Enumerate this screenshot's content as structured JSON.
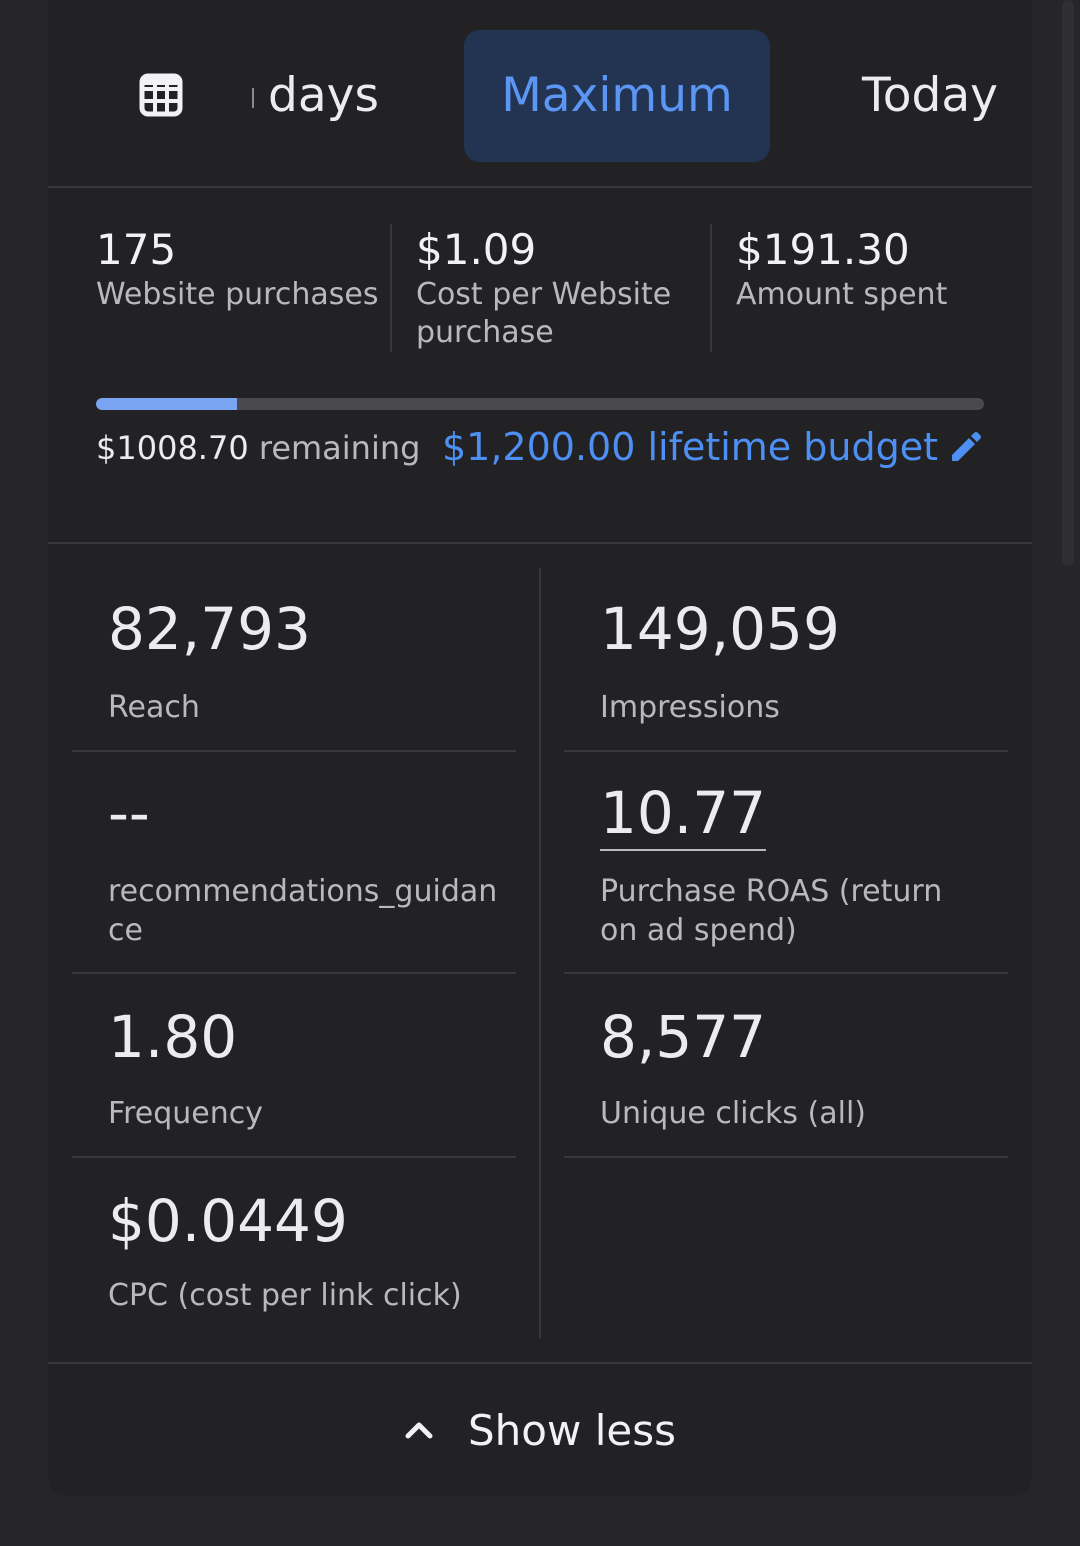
{
  "tabs": {
    "calendar_icon": "calendar-grid-icon",
    "days_label": "days",
    "maximum_label": "Maximum",
    "today_label": "Today"
  },
  "summary": {
    "purchases_value": "175",
    "purchases_label": "Website purchases",
    "cost_value": "$1.09",
    "cost_label": "Cost per Website purchase",
    "spent_value": "$191.30",
    "spent_label": "Amount spent",
    "budget_used_fraction": 0.159,
    "remaining_amount": "$1008.70",
    "remaining_label": "remaining",
    "budget_label": "$1,200.00 lifetime budget",
    "edit_icon": "pencil-icon"
  },
  "metrics": {
    "reach_value": "82,793",
    "reach_label": "Reach",
    "impressions_value": "149,059",
    "impressions_label": "Impressions",
    "guidance_value": "--",
    "guidance_label": "recommendations_guidance",
    "roas_value": "10.77",
    "roas_label": "Purchase ROAS (return on ad spend)",
    "frequency_value": "1.80",
    "frequency_label": "Frequency",
    "unique_clicks_value": "8,577",
    "unique_clicks_label": "Unique clicks (all)",
    "cpc_value": "$0.0449",
    "cpc_label": "CPC (cost per link click)"
  },
  "footer": {
    "show_less_label": "Show less",
    "chevron_icon": "chevron-up-icon"
  },
  "colors": {
    "accent": "#5b96f4",
    "accent_bg": "#233452",
    "progress_fill": "#7aa5f3",
    "background": "#262628"
  }
}
